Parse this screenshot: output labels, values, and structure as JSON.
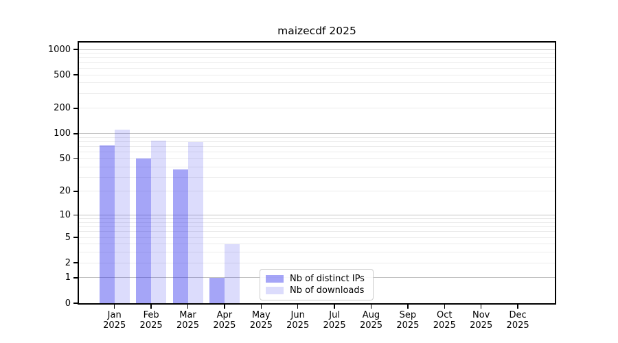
{
  "title": "maizecdf 2025",
  "chart_data": {
    "type": "bar",
    "title": "maizecdf 2025",
    "categories": [
      "Jan",
      "Feb",
      "Mar",
      "Apr",
      "May",
      "Jun",
      "Jul",
      "Aug",
      "Sep",
      "Oct",
      "Nov",
      "Dec"
    ],
    "category_year": "2025",
    "series": [
      {
        "name": "Nb of distinct IPs",
        "color": "rgba(40,40,235,0.42)",
        "solid_color": "#a9a9f5",
        "values": [
          72,
          50,
          37,
          1,
          0,
          0,
          0,
          0,
          0,
          0,
          0,
          0
        ]
      },
      {
        "name": "Nb of downloads",
        "color": "rgba(40,40,235,0.16)",
        "solid_color": "#dcdcf8",
        "values": [
          112,
          83,
          80,
          4,
          0,
          0,
          0,
          0,
          0,
          0,
          0,
          0
        ]
      }
    ],
    "yscale": "log10(1+y)",
    "yticks": [
      0,
      1,
      2,
      5,
      10,
      20,
      50,
      100,
      200,
      500,
      1000
    ],
    "major_gridlines": [
      1,
      10,
      100,
      1000
    ],
    "minor_gridlines": [
      2,
      3,
      4,
      5,
      6,
      7,
      8,
      9,
      20,
      30,
      40,
      50,
      60,
      70,
      80,
      90,
      200,
      300,
      400,
      500,
      600,
      700,
      800,
      900
    ],
    "ylim": [
      0,
      1280
    ],
    "grid": "horizontal",
    "legend_position": "lower-center",
    "axis_color": "#000000",
    "major_grid_color": "#c2c2c2",
    "minor_grid_color": "#ebebeb"
  }
}
